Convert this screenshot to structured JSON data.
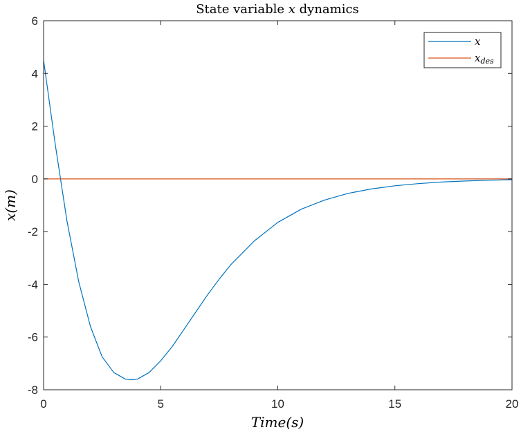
{
  "chart_data": {
    "type": "line",
    "title_prefix": "State variable ",
    "title_var": "x",
    "title_suffix": " dynamics",
    "xlabel": "Time(s)",
    "ylabel": "x(m)",
    "xlim": [
      0,
      20
    ],
    "ylim": [
      -8,
      6
    ],
    "xticks": [
      0,
      5,
      10,
      15,
      20
    ],
    "yticks": [
      -8,
      -6,
      -4,
      -2,
      0,
      2,
      4,
      6
    ],
    "grid": false,
    "legend_position": "top-right",
    "legend": [
      {
        "label": "x",
        "subscript": ""
      },
      {
        "label": "x",
        "subscript": "des"
      }
    ],
    "series": [
      {
        "name": "x",
        "color": "#0072BD",
        "x": [
          0,
          0.5,
          1,
          1.5,
          2,
          2.5,
          3,
          3.5,
          3.8,
          4,
          4.5,
          5,
          5.5,
          6,
          6.5,
          7,
          7.5,
          8,
          9,
          10,
          11,
          12,
          13,
          14,
          15,
          16,
          17,
          18,
          19,
          20
        ],
        "y": [
          4.5,
          1.3,
          -1.6,
          -3.9,
          -5.6,
          -6.75,
          -7.35,
          -7.6,
          -7.62,
          -7.6,
          -7.35,
          -6.9,
          -6.35,
          -5.7,
          -5.05,
          -4.4,
          -3.8,
          -3.25,
          -2.35,
          -1.65,
          -1.15,
          -0.8,
          -0.55,
          -0.38,
          -0.26,
          -0.18,
          -0.12,
          -0.08,
          -0.05,
          -0.03
        ]
      },
      {
        "name": "x_des",
        "color": "#D95319",
        "x": [
          0,
          20
        ],
        "y": [
          0,
          0
        ]
      }
    ]
  }
}
